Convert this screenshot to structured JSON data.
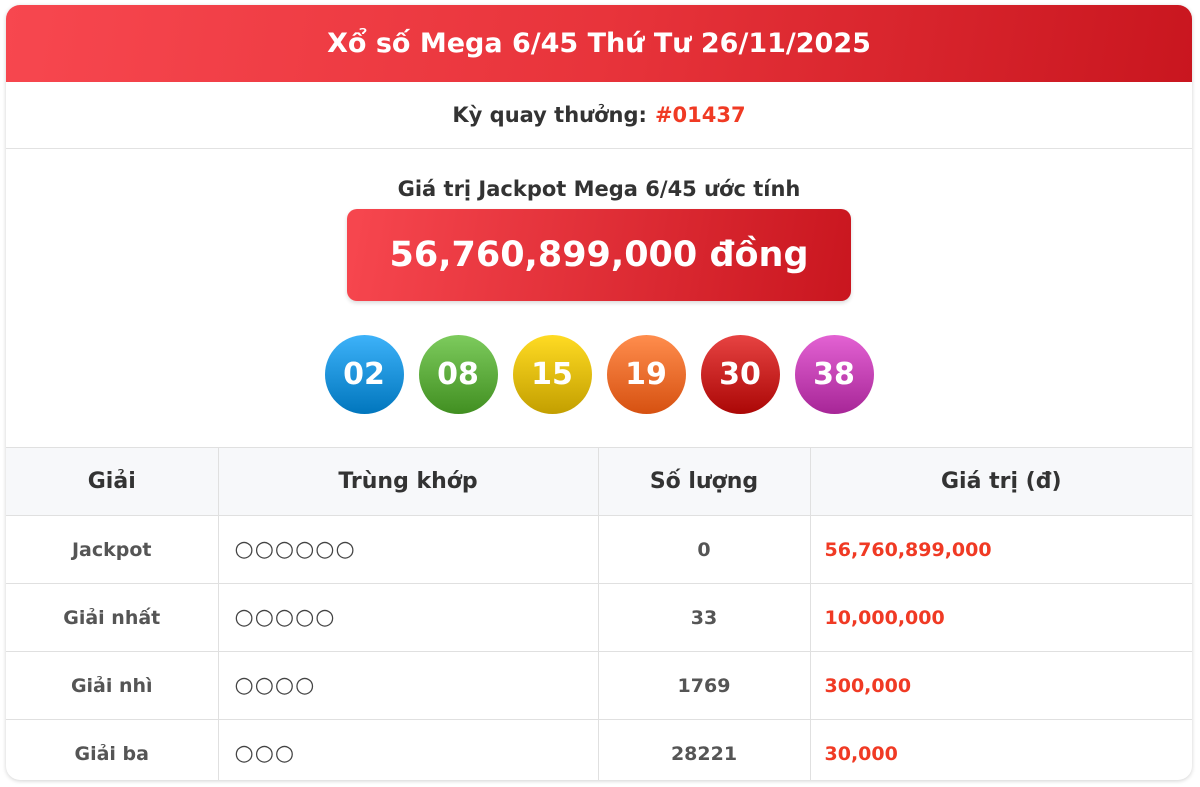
{
  "header": {
    "title": "Xổ số Mega 6/45 Thứ Tư 26/11/2025"
  },
  "draw": {
    "label": "Kỳ quay thưởng:",
    "number": "#01437"
  },
  "jackpot": {
    "label": "Giá trị Jackpot Mega 6/45 ước tính",
    "value": "56,760,899,000 đồng"
  },
  "balls": [
    {
      "n": "02",
      "color": "#1a8fd6"
    },
    {
      "n": "08",
      "color": "#5aa83a"
    },
    {
      "n": "15",
      "color": "#dcb800"
    },
    {
      "n": "19",
      "color": "#ef6a2a"
    },
    {
      "n": "30",
      "color": "#c4201f"
    },
    {
      "n": "38",
      "color": "#c03fb0"
    }
  ],
  "table": {
    "headers": [
      "Giải",
      "Trùng khớp",
      "Số lượng",
      "Giá trị (đ)"
    ],
    "rows": [
      {
        "prize": "Jackpot",
        "match": "○○○○○○",
        "count": "0",
        "value": "56,760,899,000"
      },
      {
        "prize": "Giải nhất",
        "match": "○○○○○",
        "count": "33",
        "value": "10,000,000"
      },
      {
        "prize": "Giải nhì",
        "match": "○○○○",
        "count": "1769",
        "value": "300,000"
      },
      {
        "prize": "Giải ba",
        "match": "○○○",
        "count": "28221",
        "value": "30,000"
      }
    ]
  }
}
